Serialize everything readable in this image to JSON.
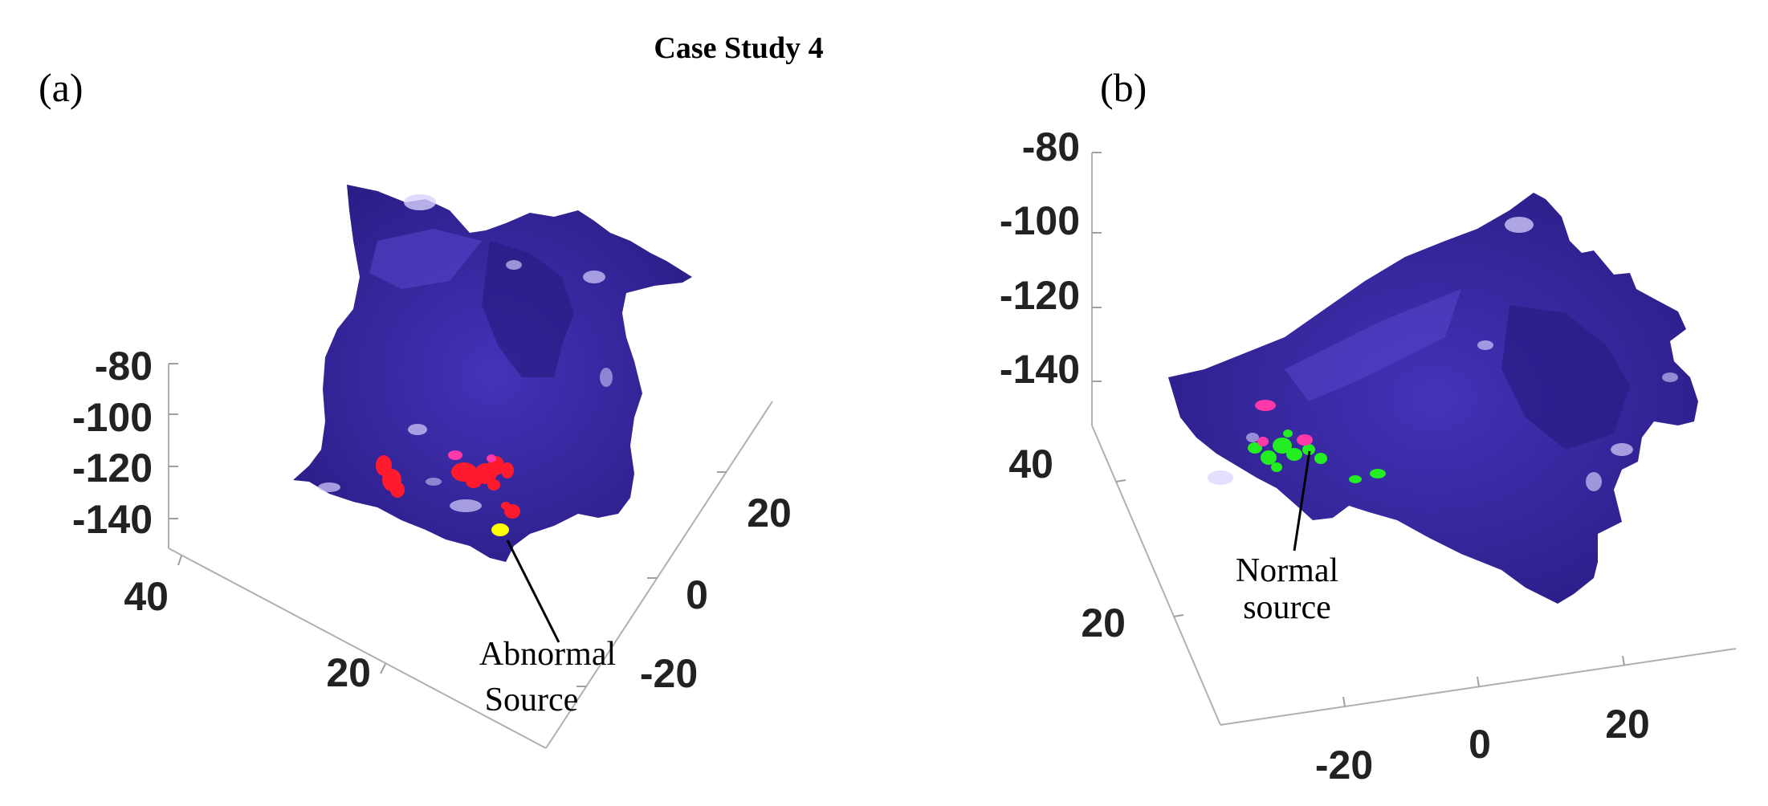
{
  "figure": {
    "title": "Case Study 4",
    "panels": [
      {
        "label": "(a)",
        "z_ticks": [
          "-80",
          "-100",
          "-120",
          "-140"
        ],
        "y_ticks": [
          "40",
          "20"
        ],
        "x_ticks": [
          "20",
          "0",
          "-20"
        ],
        "annotation_line1": "Abnormal",
        "annotation_line2": "Source"
      },
      {
        "label": "(b)",
        "z_ticks": [
          "-80",
          "-100",
          "-120",
          "-140"
        ],
        "y_ticks": [
          "40",
          "20"
        ],
        "x_ticks": [
          "-20",
          "0",
          "20"
        ],
        "annotation_line1": "Normal",
        "annotation_line2": "source"
      }
    ]
  },
  "colors": {
    "surface": "#3a2aa0",
    "surface_dark": "#241a78",
    "highlight": "#c9c3ff",
    "red_source": "#ff1a2e",
    "magenta_source": "#ff3aa8",
    "yellow_source": "#ffff00",
    "green_source": "#22ee22"
  }
}
